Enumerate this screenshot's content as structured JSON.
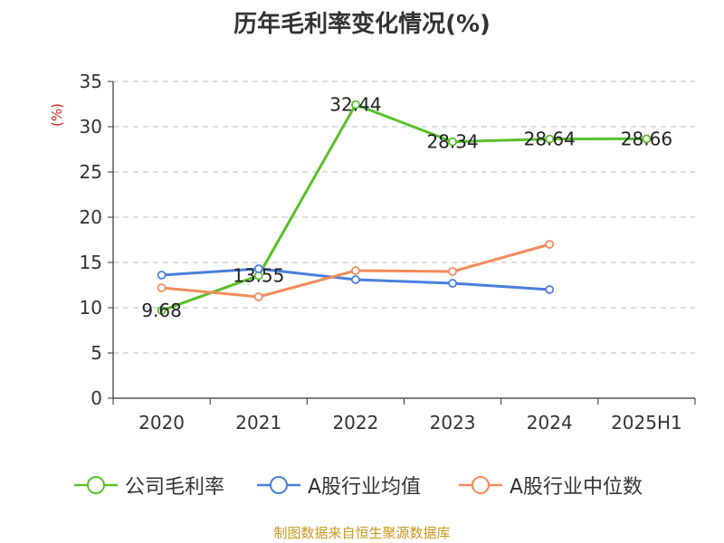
{
  "chart_data": {
    "type": "line",
    "title": "历年毛利率变化情况(%)",
    "ylabel": "(%)",
    "xlabel": "",
    "categories": [
      "2020",
      "2021",
      "2022",
      "2023",
      "2024",
      "2025H1"
    ],
    "ylim": [
      0,
      35
    ],
    "yticks": [
      0,
      5,
      10,
      15,
      20,
      25,
      30,
      35
    ],
    "grid": true,
    "legend_position": "bottom",
    "series": [
      {
        "name": "公司毛利率",
        "color": "#5ac02a",
        "values": [
          9.68,
          13.55,
          32.44,
          28.34,
          28.64,
          28.66
        ],
        "labels": [
          "9.68",
          "13.55",
          "32.44",
          "28.34",
          "28.64",
          "28.66"
        ]
      },
      {
        "name": "A股行业均值",
        "color": "#4a7fdc",
        "values": [
          13.6,
          14.3,
          13.1,
          12.7,
          12.0,
          null
        ]
      },
      {
        "name": "A股行业中位数",
        "color": "#f28c5a",
        "values": [
          12.2,
          11.2,
          14.1,
          14.0,
          17.0,
          null
        ]
      }
    ]
  },
  "footer": "制图数据来自恒生聚源数据库"
}
